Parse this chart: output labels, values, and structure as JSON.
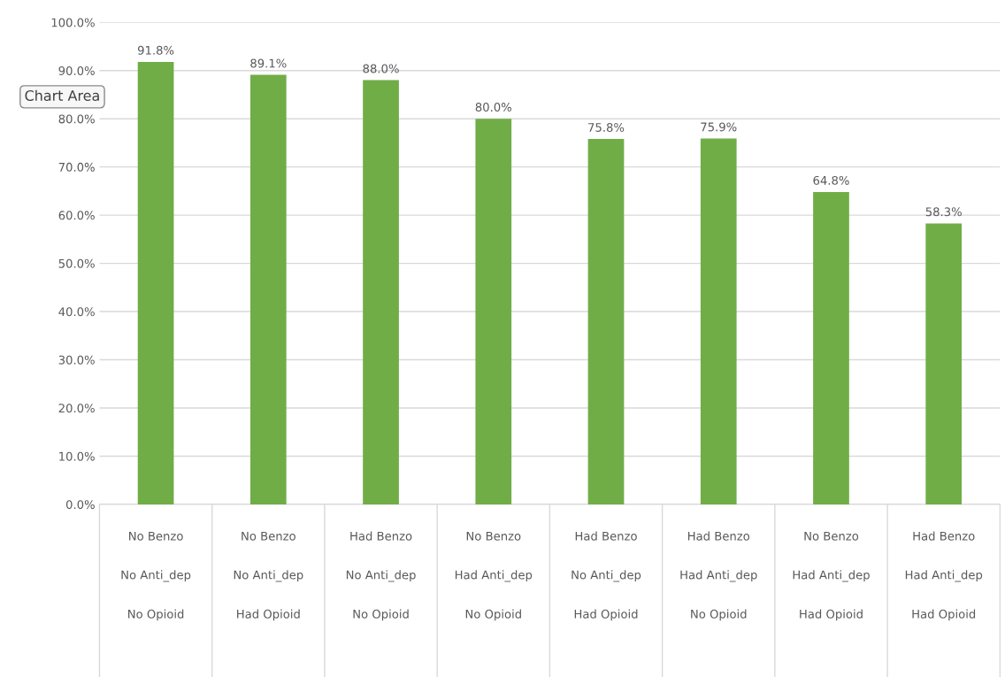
{
  "chart_data": {
    "type": "bar",
    "categories": [
      "No Benzo\nNo Anti_dep\nNo Opioid",
      "No Benzo\nNo Anti_dep\nHad Opioid",
      "Had Benzo\nNo Anti_dep\nNo Opioid",
      "No Benzo\nHad Anti_dep\nNo Opioid",
      "Had Benzo\nNo Anti_dep\nHad Opioid",
      "Had Benzo\nHad Anti_dep\nNo Opioid",
      "No Benzo\nHad Anti_dep\nHad Opioid",
      "Had Benzo\nHad Anti_dep\nHad Opioid"
    ],
    "values": [
      91.8,
      89.1,
      88.0,
      80.0,
      75.8,
      75.9,
      64.8,
      58.3
    ],
    "value_labels": [
      "91.8%",
      "89.1%",
      "88.0%",
      "80.0%",
      "75.8%",
      "75.9%",
      "64.8%",
      "58.3%"
    ],
    "color": "#70ad47",
    "ylim": [
      0,
      100
    ],
    "yticks": [
      {
        "value": 0,
        "label": "0.0%"
      },
      {
        "value": 10,
        "label": "10.0%"
      },
      {
        "value": 20,
        "label": "20.0%"
      },
      {
        "value": 30,
        "label": "30.0%"
      },
      {
        "value": 40,
        "label": "40.0%"
      },
      {
        "value": 50,
        "label": "50.0%"
      },
      {
        "value": 60,
        "label": "60.0%"
      },
      {
        "value": 70,
        "label": "70.0%"
      },
      {
        "value": 80,
        "label": "80.0%"
      },
      {
        "value": 90,
        "label": "90.0%"
      },
      {
        "value": 100,
        "label": "100.0%"
      }
    ],
    "grid": "y",
    "annotations": [
      "Chart Area"
    ]
  }
}
